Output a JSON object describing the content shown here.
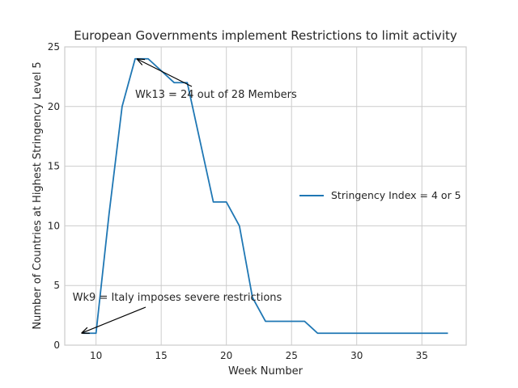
{
  "chart_data": {
    "type": "line",
    "title": "European Governments implement Restrictions to limit activity",
    "xlabel": "Week Number",
    "ylabel": "Number of Countries at Highest Stringency Level 5",
    "xlim": [
      7.6,
      38.4
    ],
    "ylim": [
      0,
      25
    ],
    "xticks": [
      10,
      15,
      20,
      25,
      30,
      35
    ],
    "yticks": [
      0,
      5,
      10,
      15,
      20,
      25
    ],
    "grid": true,
    "legend_position": "center-right",
    "series": [
      {
        "name": "Stringency Index = 4 or 5",
        "color": "#1f77b4",
        "x": [
          9,
          10,
          11,
          12,
          13,
          14,
          15,
          16,
          17,
          18,
          19,
          20,
          21,
          22,
          23,
          24,
          25,
          26,
          27,
          28,
          29,
          30,
          31,
          32,
          33,
          34,
          35,
          36,
          37
        ],
        "y": [
          1,
          1,
          11,
          20,
          24,
          24,
          23,
          22,
          22,
          17,
          12,
          12,
          10,
          4,
          2,
          2,
          2,
          2,
          1,
          1,
          1,
          1,
          1,
          1,
          1,
          1,
          1,
          1,
          1
        ]
      }
    ],
    "annotations": [
      {
        "text": "Wk13 = 24 out of 28 Members",
        "point": [
          13,
          24
        ],
        "text_anchor": [
          13,
          21
        ]
      },
      {
        "text": "Wk9 = Italy imposes severe restrictions",
        "point": [
          9,
          1
        ],
        "text_anchor": [
          8.2,
          4
        ]
      }
    ]
  }
}
